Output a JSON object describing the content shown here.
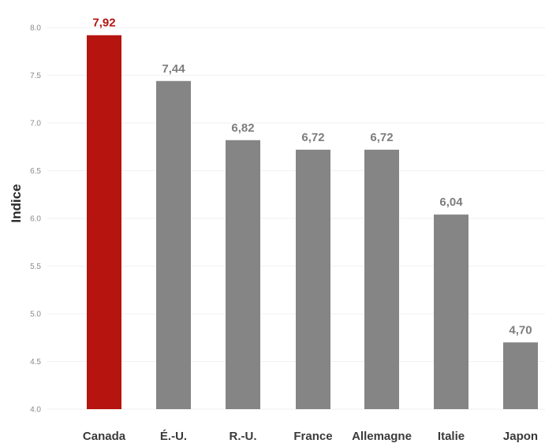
{
  "chart_data": {
    "type": "bar",
    "ylabel": "Indice",
    "xlabel": "",
    "ylim": [
      4.0,
      8.0
    ],
    "yticks": [
      "4.0",
      "4.5",
      "5.0",
      "5.5",
      "6.0",
      "6.5",
      "7.0",
      "7.5",
      "8.0"
    ],
    "ytick_values": [
      4.0,
      4.5,
      5.0,
      5.5,
      6.0,
      6.5,
      7.0,
      7.5,
      8.0
    ],
    "grid": true,
    "categories": [
      "Canada",
      "É.-U.",
      "R.-U.",
      "France",
      "Allemagne",
      "Italie",
      "Japon"
    ],
    "values": [
      7.92,
      7.44,
      6.82,
      6.72,
      6.72,
      6.04,
      4.7
    ],
    "value_labels": [
      "7,92",
      "7,44",
      "6,82",
      "6,72",
      "6,72",
      "6,04",
      "4,70"
    ],
    "colors": {
      "highlight_bar": "#b5140f",
      "highlight_label": "#b5140f",
      "default_bar": "#858585",
      "default_label": "#7d7d7d"
    },
    "highlight_index": 0
  }
}
